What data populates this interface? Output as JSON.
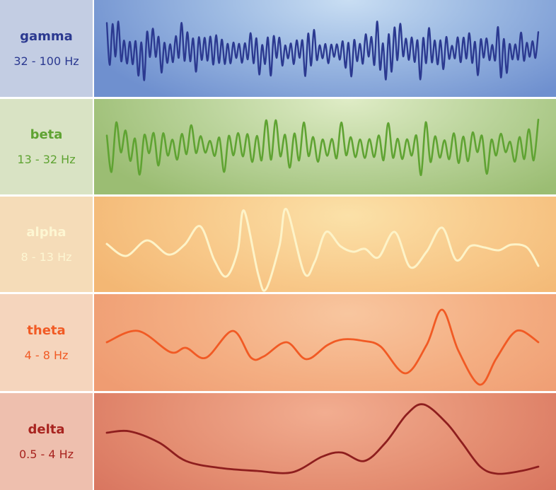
{
  "bands": [
    {
      "name": "gamma",
      "range": "32 - 100 Hz",
      "text_color": "#2b3990",
      "wave_color": "#2b3990"
    },
    {
      "name": "beta",
      "range": "13 - 32 Hz",
      "text_color": "#5fa332",
      "wave_color": "#5fa332"
    },
    {
      "name": "alpha",
      "range": "8 - 13 Hz",
      "text_color": "#fdf6d2",
      "wave_color": "#fdf3c8"
    },
    {
      "name": "theta",
      "range": "4 - 8 Hz",
      "text_color": "#f15a24",
      "wave_color": "#f15a24"
    },
    {
      "name": "delta",
      "range": "0.5 - 4 Hz",
      "text_color": "#a8231f",
      "wave_color": "#8e1e1e"
    }
  ]
}
